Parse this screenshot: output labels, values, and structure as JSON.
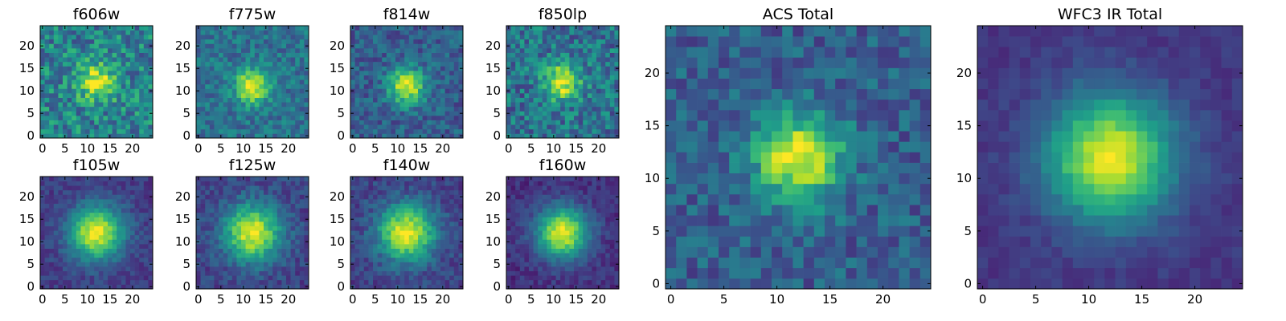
{
  "figure": {
    "description_colormap": "viridis",
    "colormap_stops": [
      "#440154",
      "#482878",
      "#3e4989",
      "#31688e",
      "#26828e",
      "#1f9e89",
      "#35b779",
      "#6ece58",
      "#b5de2b",
      "#fde725"
    ]
  },
  "chart_data": [
    {
      "type": "heatmap",
      "id": "f606w",
      "title": "f606w",
      "grid_size": 25,
      "xlim": [
        0,
        24
      ],
      "ylim": [
        0,
        24
      ],
      "xticks": [
        0,
        5,
        10,
        15,
        20
      ],
      "yticks": [
        0,
        5,
        10,
        15,
        20
      ],
      "center": [
        12,
        12
      ],
      "sigma": 2.8,
      "amplitude": 0.55,
      "background": 0.45,
      "noise": 0.22,
      "seed": 11
    },
    {
      "type": "heatmap",
      "id": "f775w",
      "title": "f775w",
      "grid_size": 25,
      "xlim": [
        0,
        24
      ],
      "ylim": [
        0,
        24
      ],
      "xticks": [
        0,
        5,
        10,
        15,
        20
      ],
      "yticks": [
        0,
        5,
        10,
        15,
        20
      ],
      "center": [
        12,
        11
      ],
      "sigma": 2.6,
      "amplitude": 0.62,
      "background": 0.38,
      "noise": 0.14,
      "seed": 23
    },
    {
      "type": "heatmap",
      "id": "f814w",
      "title": "f814w",
      "grid_size": 25,
      "xlim": [
        0,
        24
      ],
      "ylim": [
        0,
        24
      ],
      "xticks": [
        0,
        5,
        10,
        15,
        20
      ],
      "yticks": [
        0,
        5,
        10,
        15,
        20
      ],
      "center": [
        12,
        11
      ],
      "sigma": 2.8,
      "amplitude": 0.66,
      "background": 0.3,
      "noise": 0.14,
      "seed": 37
    },
    {
      "type": "heatmap",
      "id": "f850lp",
      "title": "f850lp",
      "grid_size": 25,
      "xlim": [
        0,
        24
      ],
      "ylim": [
        0,
        24
      ],
      "xticks": [
        0,
        5,
        10,
        15,
        20
      ],
      "yticks": [
        0,
        5,
        10,
        15,
        20
      ],
      "center": [
        12,
        12
      ],
      "sigma": 2.8,
      "amplitude": 0.58,
      "background": 0.38,
      "noise": 0.2,
      "seed": 41
    },
    {
      "type": "heatmap",
      "id": "f105w",
      "title": "f105w",
      "grid_size": 25,
      "xlim": [
        0,
        24
      ],
      "ylim": [
        0,
        24
      ],
      "xticks": [
        0,
        5,
        10,
        15,
        20
      ],
      "yticks": [
        0,
        5,
        10,
        15,
        20
      ],
      "center": [
        12,
        12
      ],
      "sigma": 4.2,
      "amplitude": 0.78,
      "background": 0.18,
      "noise": 0.08,
      "seed": 53
    },
    {
      "type": "heatmap",
      "id": "f125w",
      "title": "f125w",
      "grid_size": 25,
      "xlim": [
        0,
        24
      ],
      "ylim": [
        0,
        24
      ],
      "xticks": [
        0,
        5,
        10,
        15,
        20
      ],
      "yticks": [
        0,
        5,
        10,
        15,
        20
      ],
      "center": [
        12,
        12
      ],
      "sigma": 4.4,
      "amplitude": 0.76,
      "background": 0.2,
      "noise": 0.1,
      "seed": 61
    },
    {
      "type": "heatmap",
      "id": "f140w",
      "title": "f140w",
      "grid_size": 25,
      "xlim": [
        0,
        24
      ],
      "ylim": [
        0,
        24
      ],
      "xticks": [
        0,
        5,
        10,
        15,
        20
      ],
      "yticks": [
        0,
        5,
        10,
        15,
        20
      ],
      "center": [
        12,
        12
      ],
      "sigma": 4.4,
      "amplitude": 0.76,
      "background": 0.2,
      "noise": 0.1,
      "seed": 71
    },
    {
      "type": "heatmap",
      "id": "f160w",
      "title": "f160w",
      "grid_size": 25,
      "xlim": [
        0,
        24
      ],
      "ylim": [
        0,
        24
      ],
      "xticks": [
        0,
        5,
        10,
        15,
        20
      ],
      "yticks": [
        0,
        5,
        10,
        15,
        20
      ],
      "center": [
        12,
        12
      ],
      "sigma": 4.0,
      "amplitude": 0.82,
      "background": 0.14,
      "noise": 0.08,
      "seed": 83
    },
    {
      "type": "heatmap",
      "id": "acs-total",
      "title": "ACS Total",
      "grid_size": 25,
      "xlim": [
        0,
        24
      ],
      "ylim": [
        0,
        24
      ],
      "xticks": [
        0,
        5,
        10,
        15,
        20
      ],
      "yticks": [
        0,
        5,
        10,
        15,
        20
      ],
      "center": [
        12,
        12
      ],
      "sigma": 2.9,
      "amplitude": 0.68,
      "background": 0.3,
      "noise": 0.14,
      "seed": 97
    },
    {
      "type": "heatmap",
      "id": "wfc3-ir-total",
      "title": "WFC3 IR Total",
      "grid_size": 25,
      "xlim": [
        0,
        24
      ],
      "ylim": [
        0,
        24
      ],
      "xticks": [
        0,
        5,
        10,
        15,
        20
      ],
      "yticks": [
        0,
        5,
        10,
        15,
        20
      ],
      "center": [
        12,
        12
      ],
      "sigma": 4.2,
      "amplitude": 0.8,
      "background": 0.16,
      "noise": 0.05,
      "seed": 101
    }
  ]
}
